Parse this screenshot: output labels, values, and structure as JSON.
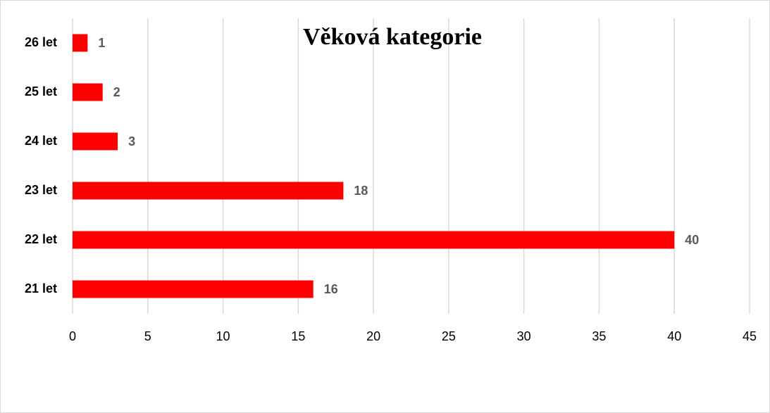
{
  "chart_data": {
    "type": "bar",
    "orientation": "horizontal",
    "title": "Věková kategorie",
    "categories": [
      "21 let",
      "22 let",
      "23 let",
      "24 let",
      "25 let",
      "26 let"
    ],
    "values": [
      16,
      40,
      18,
      3,
      2,
      1
    ],
    "color": "#ff0000",
    "xlim": [
      0,
      45
    ],
    "xticks": [
      0,
      5,
      10,
      15,
      20,
      25,
      30,
      35,
      40,
      45
    ],
    "grid": true
  }
}
